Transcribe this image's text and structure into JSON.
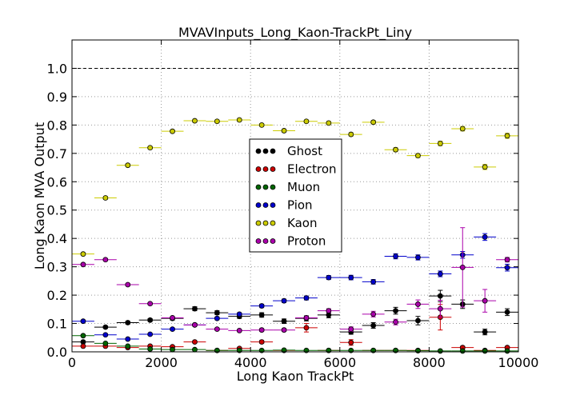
{
  "chart_data": {
    "type": "scatter",
    "title": "MVAVInputs_Long_Kaon-TrackPt_Liny",
    "xlabel": "Long Kaon TrackPt",
    "ylabel": "Long Kaon MVA Output",
    "xlim": [
      0,
      10000
    ],
    "ylim": [
      0,
      1.1
    ],
    "xticks": [
      "0",
      "2000",
      "4000",
      "6000",
      "8000",
      "10000"
    ],
    "yticks": [
      "0.0",
      "0.1",
      "0.2",
      "0.3",
      "0.4",
      "0.5",
      "0.6",
      "0.7",
      "0.8",
      "0.9",
      "1.0"
    ],
    "grid": true,
    "reference_line": 1.0,
    "bin_width": 500,
    "x": [
      250,
      750,
      1250,
      1750,
      2250,
      2750,
      3250,
      3750,
      4250,
      4750,
      5250,
      5750,
      6250,
      6750,
      7250,
      7750,
      8250,
      8750,
      9250,
      9750
    ],
    "legend_position": "center",
    "series": [
      {
        "name": "Ghost",
        "color": "#000000",
        "values": [
          0.035,
          0.087,
          0.103,
          0.112,
          0.118,
          0.152,
          0.138,
          0.125,
          0.13,
          0.108,
          0.118,
          0.13,
          0.07,
          0.093,
          0.145,
          0.11,
          0.197,
          0.168,
          0.07,
          0.14
        ],
        "errors": [
          0.003,
          0.004,
          0.005,
          0.005,
          0.006,
          0.007,
          0.007,
          0.007,
          0.008,
          0.008,
          0.009,
          0.01,
          0.008,
          0.01,
          0.012,
          0.015,
          0.02,
          0.015,
          0.01,
          0.012
        ]
      },
      {
        "name": "Electron",
        "color": "#cc0000",
        "values": [
          0.02,
          0.02,
          0.015,
          0.02,
          0.018,
          0.035,
          0.005,
          0.012,
          0.035,
          0.005,
          0.085,
          0.005,
          0.033,
          0.005,
          0.005,
          0.005,
          0.122,
          0.015,
          0.005,
          0.015
        ],
        "errors": [
          0.002,
          0.002,
          0.002,
          0.003,
          0.003,
          0.004,
          0.002,
          0.003,
          0.005,
          0.002,
          0.015,
          0.002,
          0.01,
          0.002,
          0.002,
          0.002,
          0.045,
          0.005,
          0.002,
          0.004
        ]
      },
      {
        "name": "Muon",
        "color": "#006600",
        "values": [
          0.057,
          0.03,
          0.02,
          0.01,
          0.008,
          0.008,
          0.005,
          0.005,
          0.005,
          0.006,
          0.005,
          0.005,
          0.005,
          0.005,
          0.005,
          0.004,
          0.003,
          0.003,
          0.003,
          0.003
        ],
        "errors": [
          0.003,
          0.002,
          0.002,
          0.002,
          0.002,
          0.002,
          0.002,
          0.002,
          0.002,
          0.002,
          0.002,
          0.002,
          0.002,
          0.002,
          0.002,
          0.002,
          0.002,
          0.002,
          0.002,
          0.002
        ]
      },
      {
        "name": "Pion",
        "color": "#0000cc",
        "values": [
          0.108,
          0.06,
          0.045,
          0.062,
          0.08,
          0.095,
          0.118,
          0.133,
          0.162,
          0.18,
          0.19,
          0.262,
          0.262,
          0.247,
          0.337,
          0.333,
          0.275,
          0.342,
          0.405,
          0.297
        ],
        "errors": [
          0.003,
          0.003,
          0.003,
          0.003,
          0.004,
          0.004,
          0.005,
          0.005,
          0.006,
          0.006,
          0.007,
          0.007,
          0.008,
          0.008,
          0.009,
          0.009,
          0.01,
          0.012,
          0.012,
          0.012
        ]
      },
      {
        "name": "Kaon",
        "color": "#cccc00",
        "values": [
          0.345,
          0.543,
          0.658,
          0.72,
          0.778,
          0.815,
          0.813,
          0.818,
          0.8,
          0.78,
          0.813,
          0.807,
          0.767,
          0.81,
          0.713,
          0.692,
          0.735,
          0.787,
          0.652,
          0.762
        ],
        "errors": [
          0.004,
          0.005,
          0.005,
          0.005,
          0.005,
          0.005,
          0.005,
          0.005,
          0.005,
          0.005,
          0.005,
          0.006,
          0.006,
          0.006,
          0.007,
          0.007,
          0.008,
          0.008,
          0.009,
          0.009
        ]
      },
      {
        "name": "Proton",
        "color": "#aa00aa",
        "values": [
          0.308,
          0.325,
          0.237,
          0.17,
          0.12,
          0.095,
          0.08,
          0.075,
          0.077,
          0.077,
          0.12,
          0.145,
          0.08,
          0.133,
          0.105,
          0.168,
          0.152,
          0.298,
          0.18,
          0.325
        ],
        "errors": [
          0.004,
          0.004,
          0.004,
          0.004,
          0.004,
          0.004,
          0.004,
          0.004,
          0.005,
          0.005,
          0.006,
          0.007,
          0.008,
          0.01,
          0.01,
          0.015,
          0.03,
          0.14,
          0.04,
          0.008
        ]
      }
    ]
  }
}
